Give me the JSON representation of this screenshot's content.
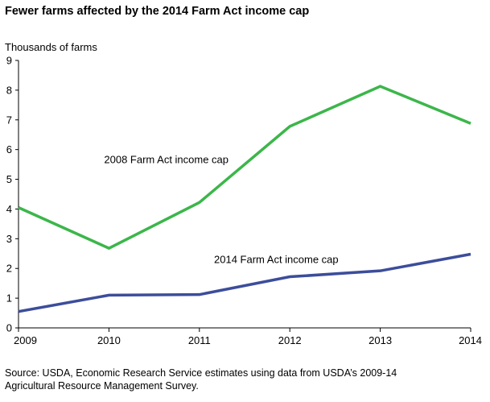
{
  "chart_data": {
    "type": "line",
    "title": "Fewer farms affected by the 2014 Farm Act income cap",
    "ylabel": "Thousands of farms",
    "xlabel": "",
    "x": [
      "2009",
      "2010",
      "2011",
      "2012",
      "2013",
      "2014"
    ],
    "ylim": [
      0,
      9
    ],
    "yticks": [
      "0",
      "1",
      "2",
      "3",
      "4",
      "5",
      "6",
      "7",
      "8",
      "9"
    ],
    "grid": false,
    "legend": "inline labels",
    "series": [
      {
        "name": "2008 Farm Act income cap",
        "values": [
          4.05,
          2.68,
          4.22,
          6.78,
          8.13,
          6.88
        ],
        "color": "#3cb64a"
      },
      {
        "name": "2014 Farm Act income cap",
        "values": [
          0.55,
          1.1,
          1.12,
          1.72,
          1.92,
          2.48
        ],
        "color": "#3c4d9b"
      }
    ]
  },
  "source_line1": "Source:  USDA, Economic Research Service estimates using data from USDA’s 2009-14",
  "source_line2": "Agricultural Resource Management Survey."
}
